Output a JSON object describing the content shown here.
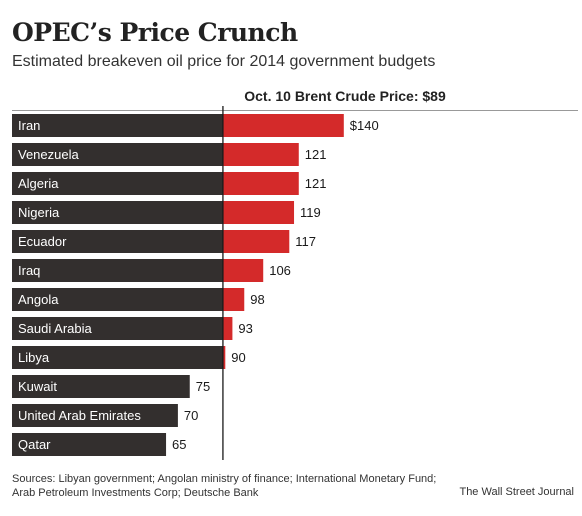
{
  "header": {
    "title": "OPEC’s Price Crunch",
    "subtitle": "Estimated breakeven oil price for 2014 government budgets"
  },
  "reference": {
    "label": "Oct. 10 Brent Crude Price: $89",
    "value": 89
  },
  "chart_data": {
    "type": "bar",
    "orientation": "horizontal",
    "categories": [
      "Iran",
      "Venezuela",
      "Algeria",
      "Nigeria",
      "Ecuador",
      "Iraq",
      "Angola",
      "Saudi Arabia",
      "Libya",
      "Kuwait",
      "United Arab Emirates",
      "Qatar"
    ],
    "values": [
      140,
      121,
      121,
      119,
      117,
      106,
      98,
      93,
      90,
      75,
      70,
      65
    ],
    "value_labels": [
      "$140",
      "121",
      "121",
      "119",
      "117",
      "106",
      "98",
      "93",
      "90",
      "75",
      "70",
      "65"
    ],
    "reference_line": 89,
    "colors": {
      "below": "#332f2e",
      "above": "#d42a2a"
    }
  },
  "footer": {
    "sources": "Sources: Libyan government; Angolan ministry of finance; International Monetary Fund; Arab Petroleum Investments Corp; Deutsche Bank",
    "credit": "The Wall Street Journal"
  }
}
